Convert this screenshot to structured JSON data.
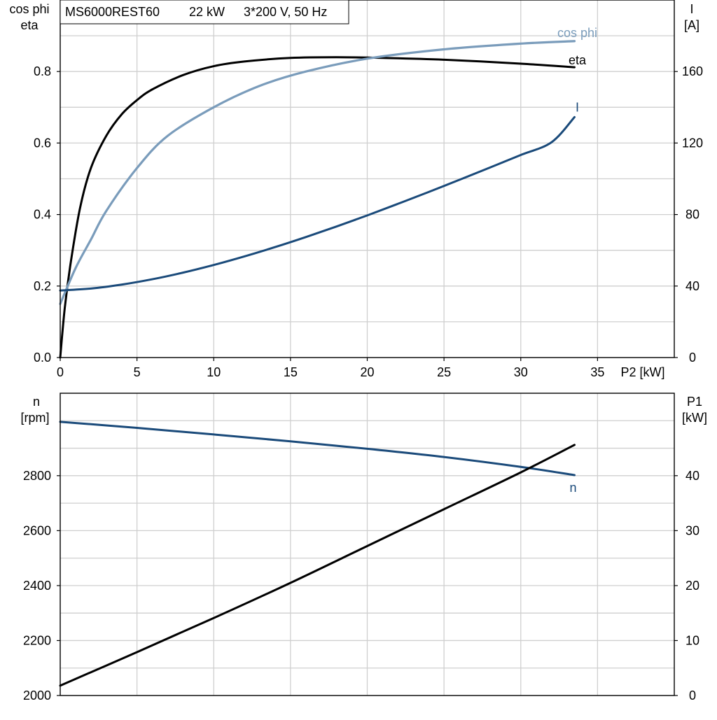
{
  "title_box": {
    "model": "MS6000REST60",
    "power": "22 kW",
    "supply": "3*200 V, 50 Hz"
  },
  "colors": {
    "eta": "#000000",
    "cos_phi": "#7a9cbb",
    "current": "#1a4a7a",
    "speed": "#1a4a7a",
    "p1": "#000000",
    "grid": "#cfcfcf"
  },
  "chart_data": [
    {
      "type": "line",
      "x_label": "P2 [kW]",
      "xlim": [
        0,
        40
      ],
      "x_ticks": [
        "0",
        "5",
        "10",
        "15",
        "20",
        "25",
        "30",
        "35"
      ],
      "left_axis": {
        "label_line1": "cos phi",
        "label_line2": "eta",
        "ylim": [
          0,
          1.0
        ],
        "ticks": [
          "0.0",
          "0.2",
          "0.4",
          "0.6",
          "0.8"
        ]
      },
      "right_axis": {
        "label_line1": "I",
        "label_line2": "[A]",
        "ylim": [
          0,
          200
        ],
        "ticks": [
          "0",
          "40",
          "80",
          "120",
          "160"
        ]
      },
      "grid": true,
      "series": [
        {
          "name": "eta",
          "axis": "left",
          "x": [
            0,
            0.3,
            0.7,
            1.3,
            2,
            3,
            4,
            5,
            6,
            8,
            10,
            12,
            15,
            18,
            21,
            25,
            30,
            33.5
          ],
          "y": [
            0.0,
            0.14,
            0.27,
            0.42,
            0.53,
            0.62,
            0.68,
            0.72,
            0.75,
            0.79,
            0.815,
            0.828,
            0.838,
            0.84,
            0.838,
            0.833,
            0.822,
            0.812
          ]
        },
        {
          "name": "cos phi",
          "axis": "left",
          "x": [
            0,
            1,
            2,
            3,
            5,
            7,
            10,
            13,
            16,
            20,
            25,
            30,
            33.5
          ],
          "y": [
            0.15,
            0.25,
            0.33,
            0.41,
            0.53,
            0.62,
            0.7,
            0.76,
            0.8,
            0.836,
            0.862,
            0.878,
            0.885
          ]
        },
        {
          "name": "I",
          "axis": "right",
          "x": [
            0,
            2,
            4,
            6,
            8,
            10,
            12,
            14,
            16,
            18,
            20,
            22,
            24,
            26,
            28,
            30,
            32,
            33.5
          ],
          "y": [
            37.5,
            38.6,
            40.8,
            43.8,
            47.5,
            51.8,
            56.6,
            61.8,
            67.4,
            73.3,
            79.5,
            86.0,
            92.6,
            99.4,
            106.3,
            113.3,
            120.4,
            134.5
          ]
        }
      ]
    },
    {
      "type": "line",
      "xlim": [
        0,
        40
      ],
      "left_axis": {
        "label_line1": "n",
        "label_line2": "[rpm]",
        "ylim": [
          2000,
          3100
        ],
        "ticks": [
          "2000",
          "2200",
          "2400",
          "2600",
          "2800"
        ]
      },
      "right_axis": {
        "label_line1": "P1",
        "label_line2": "[kW]",
        "ylim": [
          0,
          55
        ],
        "ticks": [
          "0",
          "10",
          "20",
          "30",
          "40"
        ]
      },
      "grid": true,
      "series": [
        {
          "name": "n",
          "axis": "left",
          "x": [
            0,
            5,
            10,
            15,
            20,
            25,
            30,
            33.5
          ],
          "y": [
            2996,
            2974,
            2950,
            2925,
            2898,
            2868,
            2832,
            2802
          ]
        },
        {
          "name": "P1",
          "axis": "right",
          "x": [
            0,
            5,
            10,
            15,
            20,
            25,
            30,
            33.5
          ],
          "y": [
            1.8,
            7.9,
            14.1,
            20.5,
            27.2,
            33.9,
            40.6,
            45.6
          ]
        }
      ]
    }
  ]
}
